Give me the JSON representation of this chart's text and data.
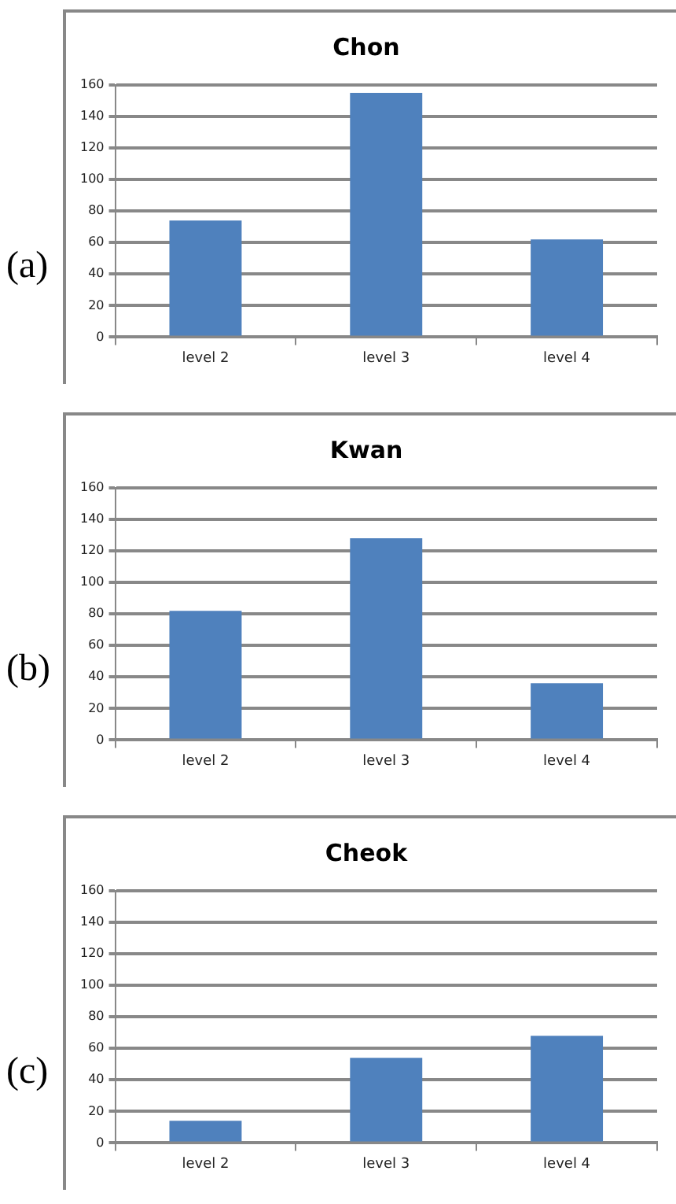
{
  "chart_data": [
    {
      "type": "bar",
      "title": "Chon",
      "categories": [
        "level 2",
        "level 3",
        "level 4"
      ],
      "values": [
        74,
        155,
        62
      ],
      "color": "#4f81bd",
      "ylim": [
        0,
        160
      ],
      "yticks": [
        0,
        20,
        40,
        60,
        80,
        100,
        120,
        140,
        160
      ],
      "grid": "y",
      "annotations": [
        "(a)"
      ]
    },
    {
      "type": "bar",
      "title": "Kwan",
      "categories": [
        "level 2",
        "level 3",
        "level 4"
      ],
      "values": [
        82,
        128,
        36
      ],
      "color": "#4f81bd",
      "ylim": [
        0,
        160
      ],
      "yticks": [
        0,
        20,
        40,
        60,
        80,
        100,
        120,
        140,
        160
      ],
      "grid": "y",
      "annotations": [
        "(b)"
      ]
    },
    {
      "type": "bar",
      "title": "Cheok",
      "categories": [
        "level 2",
        "level 3",
        "level 4"
      ],
      "values": [
        14,
        54,
        68
      ],
      "color": "#4f81bd",
      "ylim": [
        0,
        160
      ],
      "yticks": [
        0,
        20,
        40,
        60,
        80,
        100,
        120,
        140,
        160
      ],
      "grid": "y",
      "annotations": [
        "(c)"
      ]
    }
  ]
}
